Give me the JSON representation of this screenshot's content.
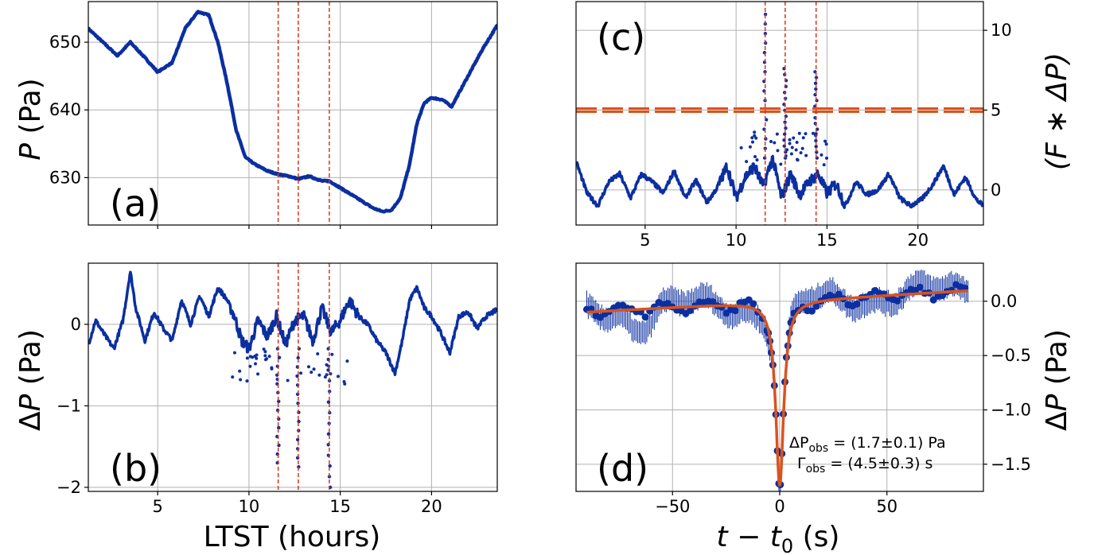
{
  "colors": {
    "data": "#0b2fa0",
    "fit": "#d9531e",
    "vline": "#d9351e",
    "threshold": "#d9531e"
  },
  "chart_data": [
    {
      "panel": "(a)",
      "type": "line",
      "xlabel": "",
      "ylabel_main": "P",
      "ylabel_unit": "(Pa)",
      "xlim": [
        1.2,
        23.6
      ],
      "ylim": [
        623,
        656
      ],
      "yticks": [
        630,
        640,
        650
      ],
      "ytick_labels": [
        "630",
        "640",
        "650"
      ],
      "xticks": [
        5,
        10,
        15,
        20
      ],
      "xtick_labels": [
        "",
        "",
        "",
        ""
      ],
      "vlines": [
        11.6,
        12.7,
        14.4
      ],
      "series": [
        {
          "x": [
            1.2,
            2,
            2.8,
            3.5,
            4.2,
            5,
            5.8,
            6.5,
            7.2,
            7.8,
            8.3,
            8.8,
            9.3,
            9.8,
            10.3,
            11,
            11.6,
            12.2,
            12.7,
            13.3,
            14,
            14.4,
            15,
            15.6,
            16.2,
            16.8,
            17.3,
            17.8,
            18.3,
            18.8,
            19.2,
            19.6,
            20,
            20.6,
            21.1,
            21.6,
            22.2,
            22.8,
            23.6
          ],
          "y": [
            652,
            650,
            648,
            650,
            648,
            645.6,
            647,
            652,
            654.5,
            654,
            650,
            644,
            637,
            633,
            632,
            631,
            630.5,
            630.2,
            629.8,
            630.2,
            629.5,
            629.5,
            628.5,
            627.5,
            626.5,
            625.5,
            625,
            625.2,
            627,
            632,
            638,
            641,
            641.8,
            641.5,
            640.5,
            643,
            646,
            649,
            652.5
          ]
        }
      ]
    },
    {
      "panel": "(b)",
      "type": "line",
      "xlabel": "LTST (hours)",
      "ylabel_main": "ΔP",
      "ylabel_unit": "(Pa)",
      "xlim": [
        1.2,
        23.6
      ],
      "ylim": [
        -2.05,
        0.75
      ],
      "yticks": [
        -2,
        -1,
        0
      ],
      "ytick_labels": [
        "−2",
        "−1",
        "0"
      ],
      "xticks": [
        5,
        10,
        15,
        20
      ],
      "xtick_labels": [
        "5",
        "10",
        "15",
        "20"
      ],
      "vlines": [
        11.6,
        12.7,
        14.4
      ],
      "series": [
        {
          "x": [
            1.2,
            1.6,
            2,
            2.6,
            3.1,
            3.5,
            3.8,
            4.3,
            4.8,
            5.3,
            5.8,
            6.3,
            6.8,
            7.3,
            7.8,
            8.3,
            8.8,
            9.2,
            9.6,
            10,
            10.5,
            11,
            11.5,
            12,
            12.5,
            13,
            13.5,
            14,
            14.5,
            15,
            15.5,
            16,
            16.5,
            17,
            17.5,
            18,
            18.4,
            18.8,
            19.2,
            19.6,
            20,
            20.5,
            21,
            21.5,
            22,
            22.5,
            23,
            23.6
          ],
          "y": [
            -0.25,
            0.05,
            -0.1,
            -0.3,
            0.05,
            0.65,
            0.2,
            -0.2,
            0.15,
            -0.05,
            -0.2,
            0.3,
            0,
            0.35,
            0.1,
            0.45,
            0.3,
            0.1,
            -0.2,
            -0.3,
            0.05,
            -0.15,
            0.1,
            -0.25,
            0.05,
            0.1,
            -0.2,
            0.2,
            -0.1,
            0.05,
            0.3,
            0.1,
            0,
            -0.2,
            -0.35,
            -0.6,
            -0.2,
            0.3,
            0.45,
            0.2,
            0.1,
            -0.1,
            -0.35,
            0.1,
            0.15,
            -0.05,
            0.1,
            0.18
          ]
        }
      ],
      "dips": [
        {
          "x": 11.6,
          "min": -1.7
        },
        {
          "x": 12.7,
          "min": -1.75
        },
        {
          "x": 14.4,
          "min": -2.0
        }
      ]
    },
    {
      "panel": "(c)",
      "type": "line",
      "xlabel": "",
      "ylabel_main": "(F ∗ ΔP)",
      "ylabel_unit": "",
      "xlim": [
        1.2,
        23.6
      ],
      "ylim": [
        -2.2,
        11.8
      ],
      "yticks": [
        0,
        5,
        10
      ],
      "ytick_labels": [
        "0",
        "5",
        "10"
      ],
      "xticks": [
        5,
        10,
        15,
        20
      ],
      "xtick_labels": [
        "5",
        "10",
        "15",
        "20"
      ],
      "vlines": [
        11.6,
        12.7,
        14.4
      ],
      "threshold": 5,
      "series": [
        {
          "x": [
            1.2,
            1.8,
            2.4,
            3,
            3.6,
            4.2,
            4.8,
            5.4,
            6,
            6.6,
            7.2,
            7.8,
            8.4,
            9,
            9.5,
            10,
            10.5,
            11,
            11.5,
            12,
            12.5,
            13,
            13.5,
            14,
            14.5,
            15,
            15.5,
            16,
            16.6,
            17.2,
            17.8,
            18.4,
            19,
            19.6,
            20.2,
            20.8,
            21.4,
            22,
            22.6,
            23.2,
            23.6
          ],
          "y": [
            1.8,
            -0.2,
            -1,
            0.5,
            1,
            -0.5,
            1,
            0.5,
            -0.2,
            1.2,
            -0.5,
            0.6,
            -0.8,
            0.2,
            1.5,
            -0.5,
            0.8,
            1.5,
            0.2,
            2,
            -0.5,
            1,
            -0.3,
            0.5,
            1,
            -0.2,
            0.4,
            -1,
            0.5,
            -0.3,
            0,
            1,
            -0.5,
            -1,
            -0.6,
            0.3,
            1.5,
            -0.3,
            0.8,
            -0.6,
            -1
          ]
        }
      ],
      "spikes": [
        {
          "x": 11.6,
          "max": 11.0
        },
        {
          "x": 12.7,
          "max": 7.6
        },
        {
          "x": 14.4,
          "max": 7.4
        }
      ]
    },
    {
      "panel": "(d)",
      "type": "scatter",
      "xlabel": "t − t0 (s)",
      "ylabel_main": "ΔP",
      "ylabel_unit": "(Pa)",
      "xlim": [
        -95,
        95
      ],
      "ylim": [
        -1.75,
        0.35
      ],
      "yticks": [
        -1.5,
        -1.0,
        -0.5,
        0.0
      ],
      "ytick_labels": [
        "−1.5",
        "−1.0",
        "−0.5",
        "0.0"
      ],
      "xticks": [
        -50,
        0,
        50
      ],
      "xtick_labels": [
        "−50",
        "0",
        "50"
      ],
      "annotation": [
        "ΔP_obs = (1.7±0.1) Pa",
        "Γ_obs = (4.5±0.3) s"
      ],
      "fit": {
        "baseline_start": -0.1,
        "baseline_end": 0.1,
        "depth": 1.7,
        "gamma": 4.5
      },
      "errbar": 0.2
    }
  ],
  "labels": {
    "a": "(a)",
    "b": "(b)",
    "c": "(c)",
    "d": "(d)",
    "xlabel_b": "LTST (hours)",
    "xlabel_d_t": "t",
    "xlabel_d_rest": " − ",
    "xlabel_d_t0": "t",
    "xlabel_d_sub": "0",
    "xlabel_d_unit": " (s)",
    "ylabel_a_P": "P",
    "ylabel_a_unit": " (Pa)",
    "ylabel_b_D": "Δ",
    "ylabel_b_P": "P",
    "ylabel_b_unit": " (Pa)",
    "ylabel_c": "(F ∗ ΔP)",
    "ylabel_d_D": "Δ",
    "ylabel_d_P": "P",
    "ylabel_d_unit": " (Pa)",
    "anno1_a": "ΔP",
    "anno1_sub": "obs",
    "anno1_b": " = (1.7±0.1) Pa",
    "anno2_a": "Γ",
    "anno2_sub": "obs",
    "anno2_b": " = (4.5±0.3) s"
  }
}
